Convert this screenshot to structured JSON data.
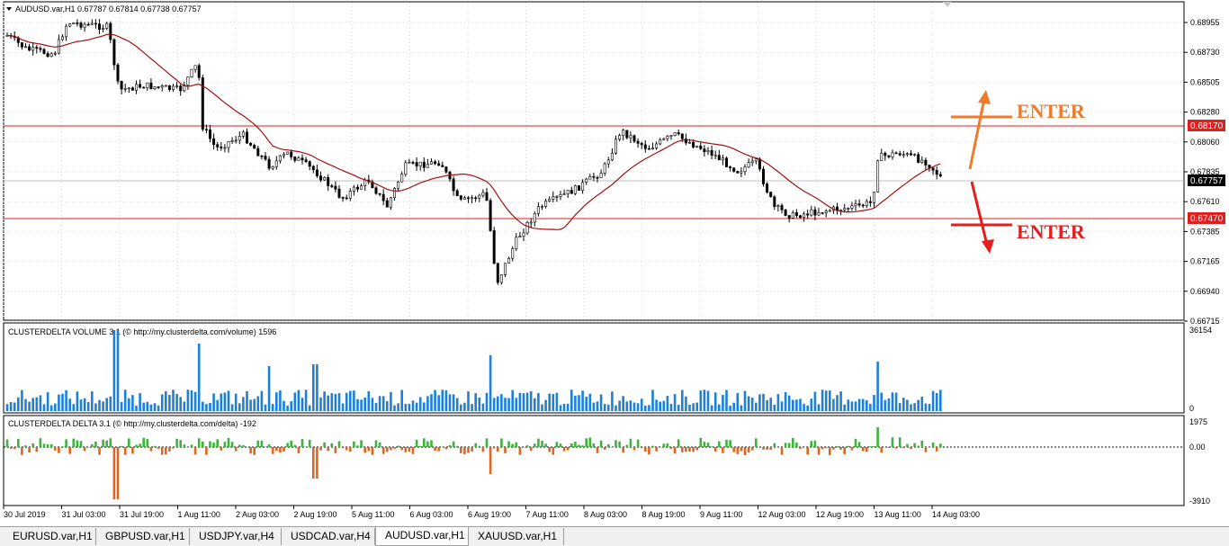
{
  "main_chart": {
    "header": "AUDUSD.var,H1  0.67787 0.67814 0.67738 0.67757",
    "price_labels": [
      "0.68955",
      "0.68730",
      "0.68505",
      "0.68280",
      "0.68060",
      "0.67835",
      "0.67610",
      "0.67385",
      "0.67165",
      "0.66940",
      "0.66715"
    ],
    "resistance_label": "0.68170",
    "support_label": "0.67470",
    "current_price_label": "0.67757",
    "annotation_up": "ENTER",
    "annotation_down": "ENTER",
    "colors": {
      "resistance": "#e31e1e",
      "support": "#e31e1e",
      "moving_average": "#a01010",
      "arrow_up": "#f07a2a",
      "arrow_down": "#e31e1e",
      "candles": "#000000"
    }
  },
  "volume_panel": {
    "header": "CLUSTERDELTA VOLUME 3.1 (© http://my.clusterdelta.com/volume) 1596",
    "max_label": "36154",
    "zero_label": "0",
    "bar_color": "#1e7fd6"
  },
  "delta_panel": {
    "header": "CLUSTERDELTA DELTA 3.1 (© http://my.clusterdelta.com/delta) -192",
    "top_label": "1975",
    "zero_label": "0.00",
    "bottom_label": "-3910",
    "positive_color": "#3cb43c",
    "negative_color": "#e0641e"
  },
  "time_axis": [
    "30 Jul 2019",
    "31 Jul 03:00",
    "31 Jul 19:00",
    "1 Aug 11:00",
    "2 Aug 03:00",
    "2 Aug 19:00",
    "5 Aug 11:00",
    "6 Aug 03:00",
    "6 Aug 19:00",
    "7 Aug 11:00",
    "8 Aug 03:00",
    "8 Aug 19:00",
    "9 Aug 11:00",
    "12 Aug 03:00",
    "12 Aug 19:00",
    "13 Aug 11:00",
    "14 Aug 03:00"
  ],
  "tabs": [
    "EURUSD.var,H1",
    "GBPUSD.var,H1",
    "USDJPY.var,H4",
    "USDCAD.var,H4",
    "AUDUSD.var,H1",
    "XAUUSD.var,H1"
  ],
  "active_tab": 4
}
